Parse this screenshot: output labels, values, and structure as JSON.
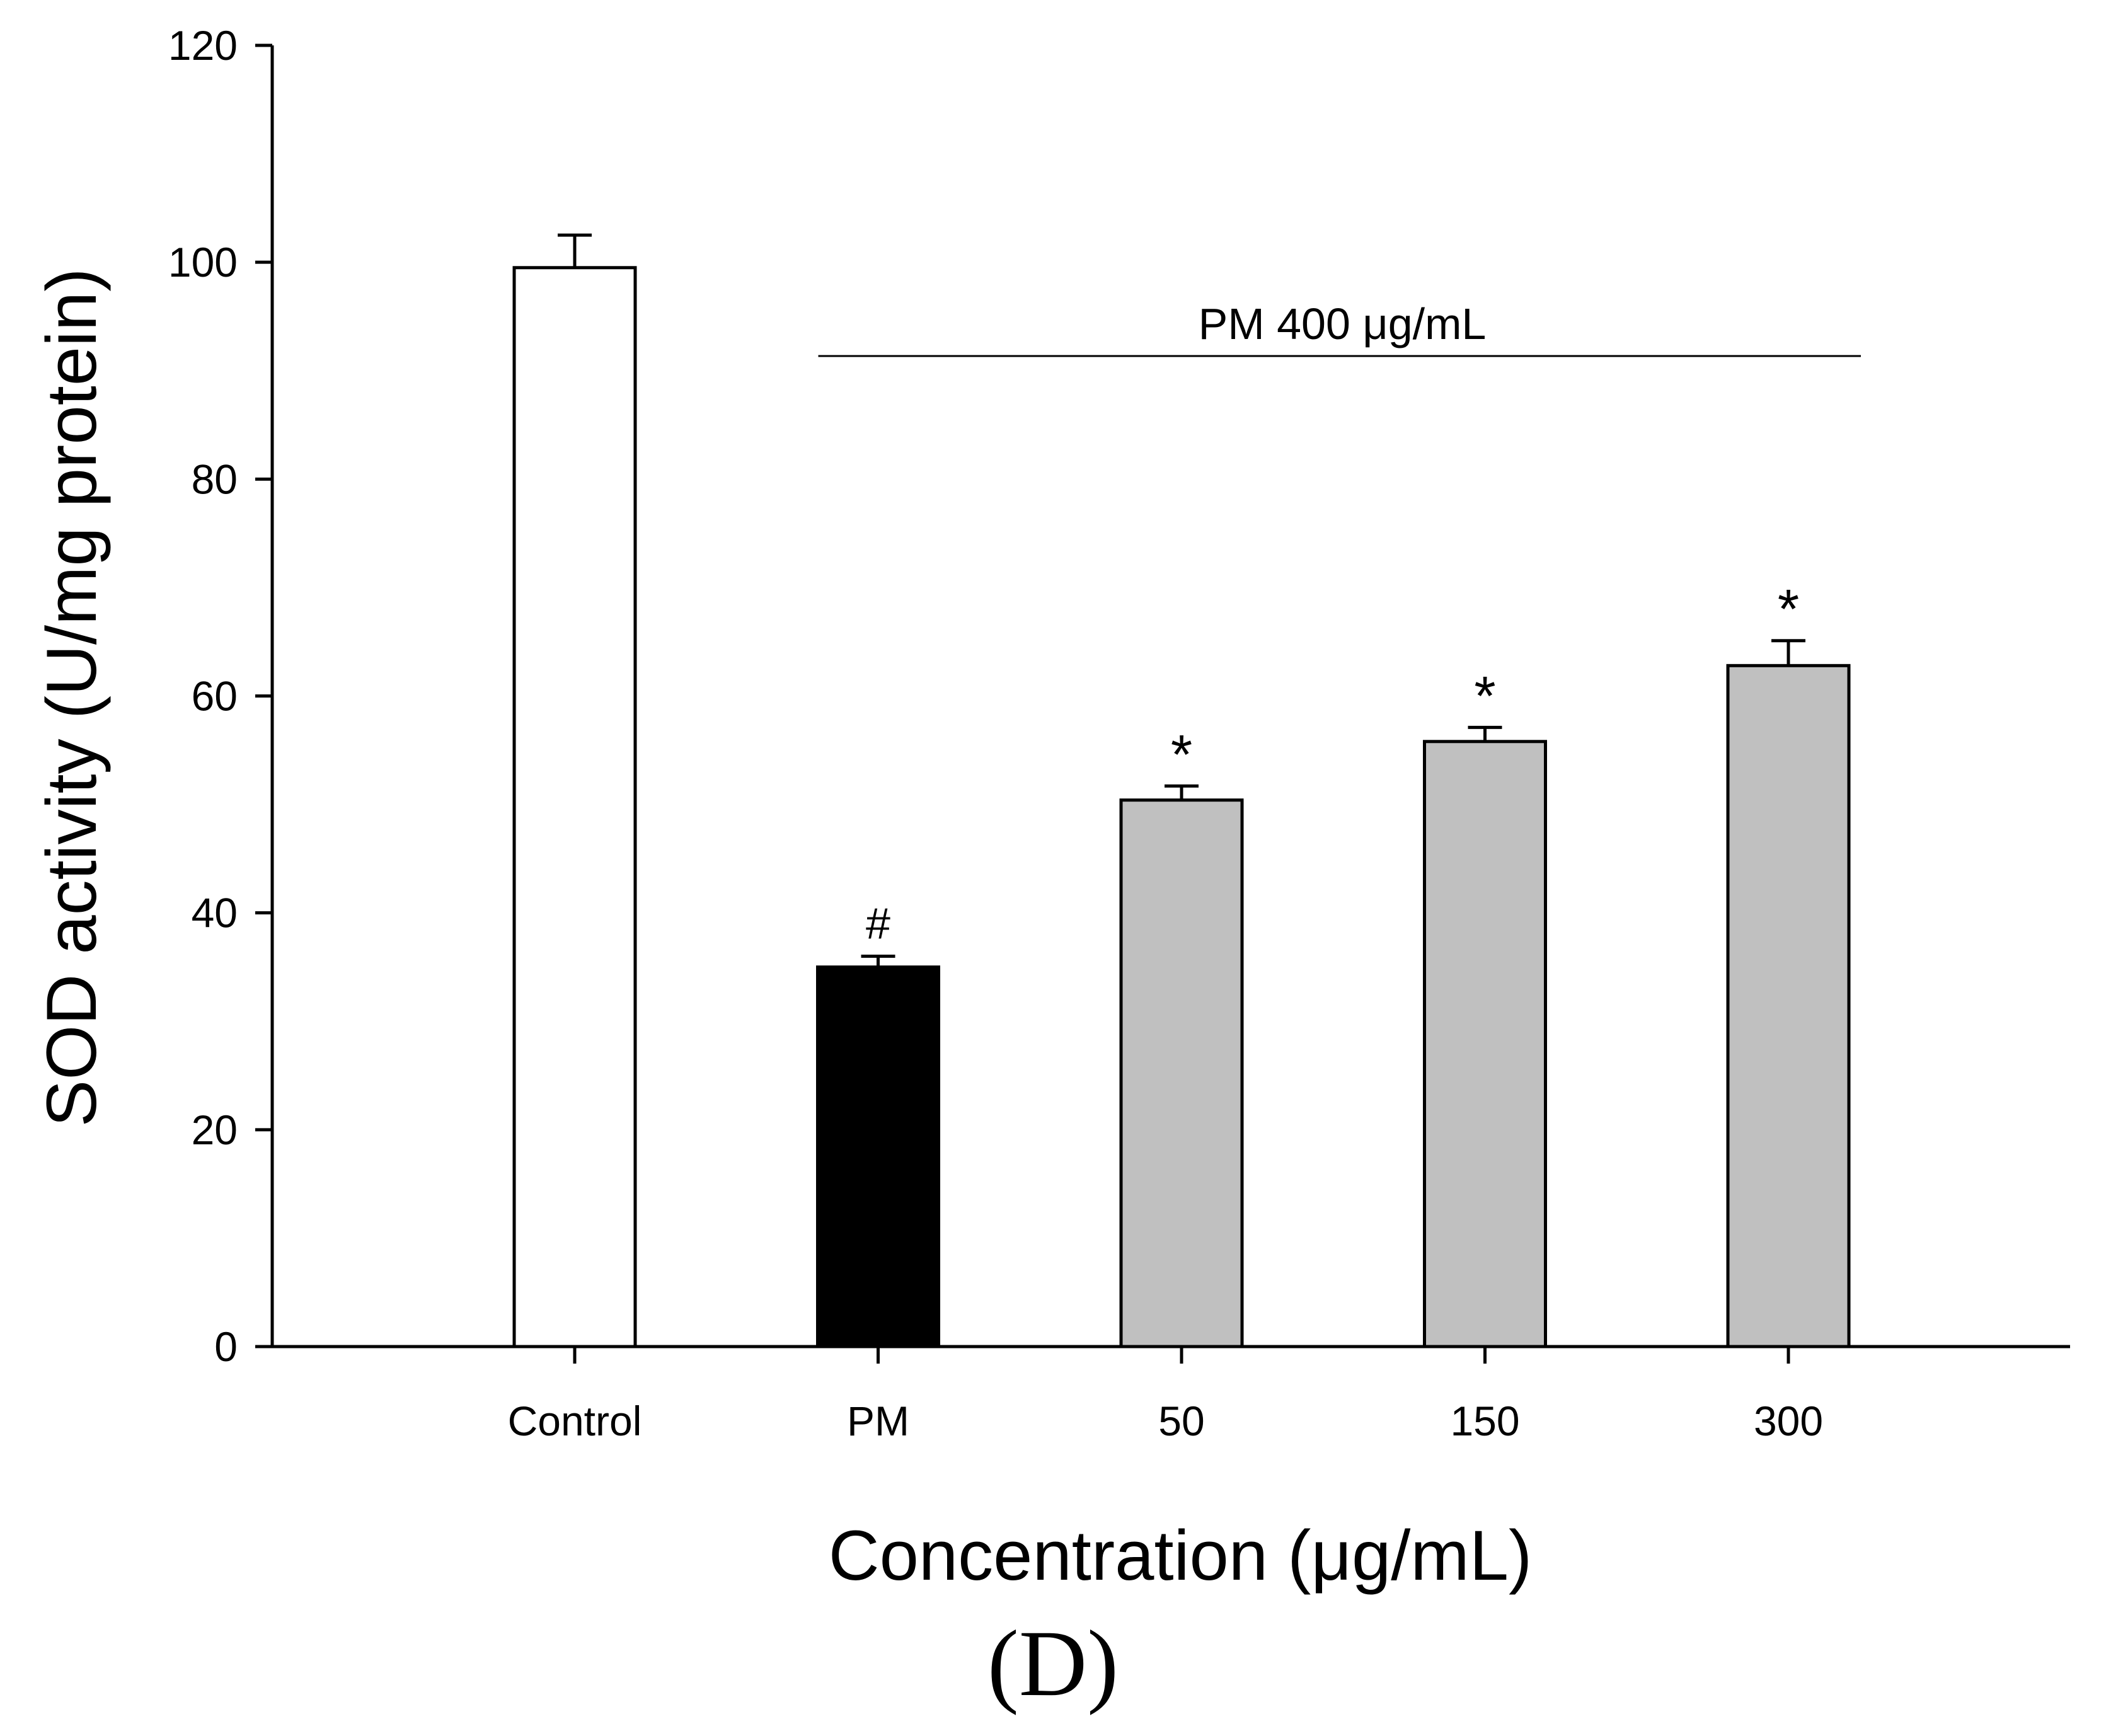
{
  "chart_data": {
    "type": "bar",
    "title": "",
    "xlabel": "Concentration (μg/mL)",
    "ylabel": "SOD activity (U/mg protein)",
    "ylim": [
      0,
      120
    ],
    "yticks": [
      0,
      20,
      40,
      60,
      80,
      100,
      120
    ],
    "grid": false,
    "categories": [
      "Control",
      "PM",
      "50",
      "150",
      "300"
    ],
    "values": [
      99.5,
      35,
      50.4,
      55.8,
      62.8
    ],
    "errors": [
      3.0,
      1.0,
      1.3,
      1.3,
      2.3
    ],
    "bar_colors": [
      "#ffffff",
      "#000000",
      "#c0c0c0",
      "#c0c0c0",
      "#c0c0c0"
    ],
    "significance_marks": [
      "",
      "#",
      "*",
      "*",
      "*"
    ],
    "group_annotation": {
      "label": "PM 400 μg/mL",
      "from_category": "PM",
      "to_category": "300"
    }
  },
  "panel_label": "(D)"
}
